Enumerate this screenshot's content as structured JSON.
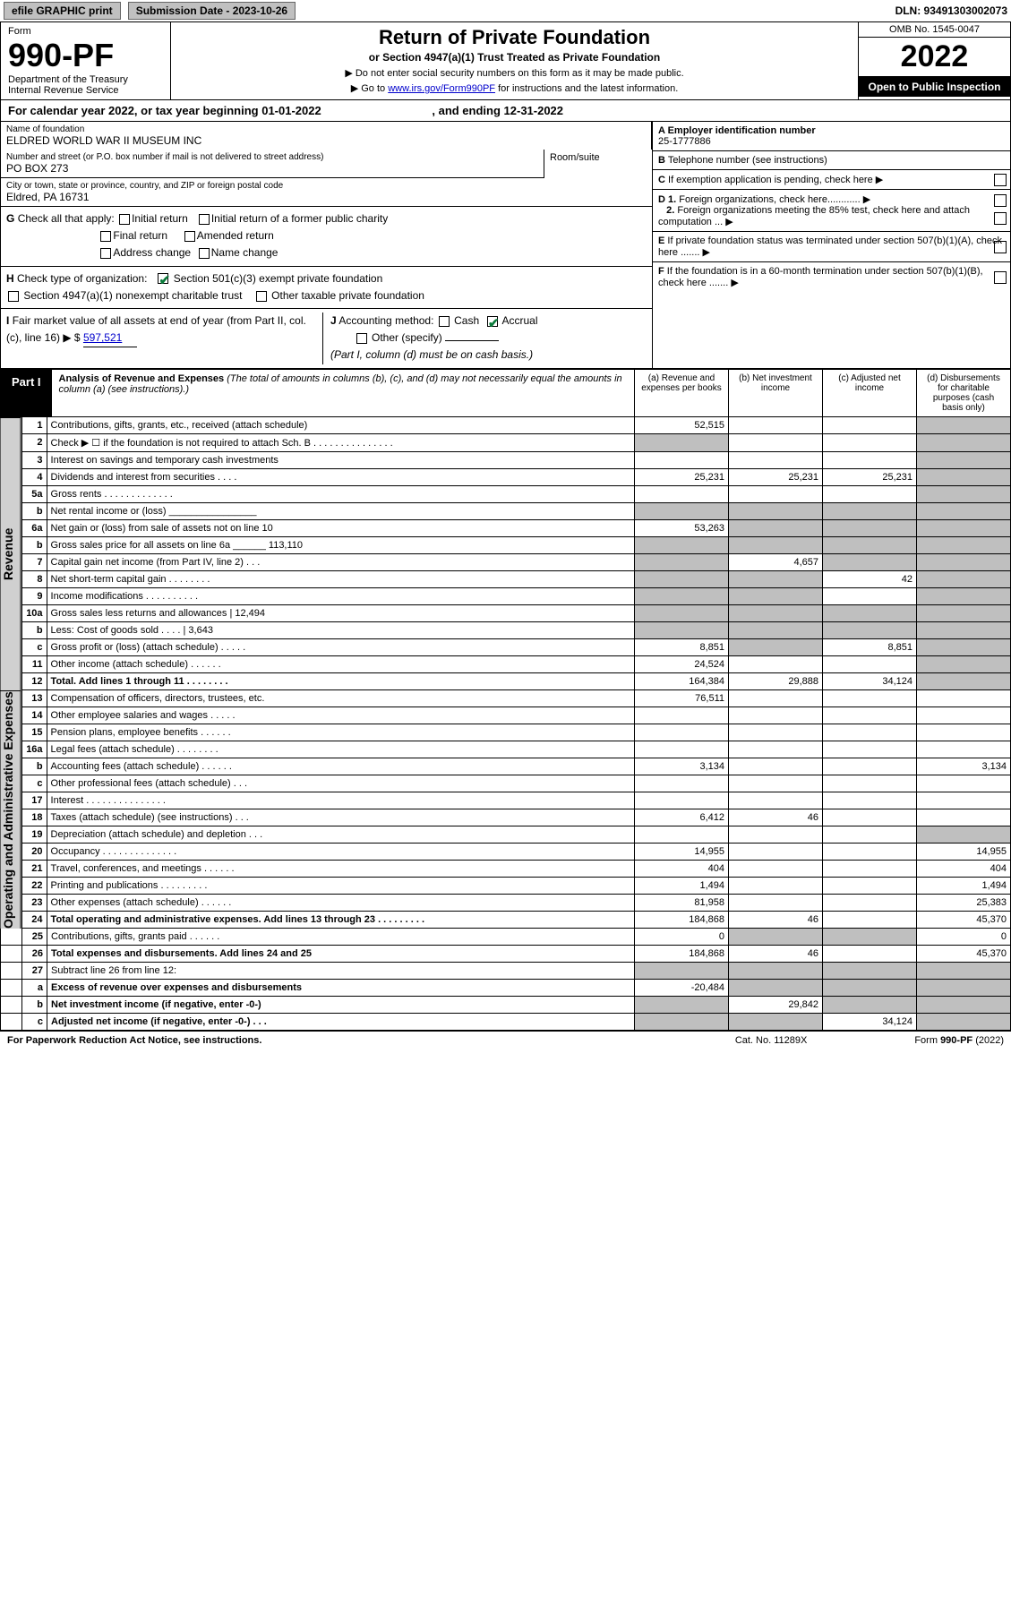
{
  "top": {
    "efile": "efile GRAPHIC print",
    "sub_lbl": "Submission Date - 2023-10-26",
    "dln": "DLN: 93491303002073"
  },
  "header": {
    "form": "Form",
    "form_no": "990-PF",
    "dept": "Department of the Treasury",
    "irs": "Internal Revenue Service",
    "title": "Return of Private Foundation",
    "subtitle": "or Section 4947(a)(1) Trust Treated as Private Foundation",
    "note1": "▶ Do not enter social security numbers on this form as it may be made public.",
    "note2": "▶ Go to",
    "link": "www.irs.gov/Form990PF",
    "note2b": "for instructions and the latest information.",
    "omb": "OMB No. 1545-0047",
    "year": "2022",
    "open": "Open to Public Inspection"
  },
  "cal": {
    "a": "For calendar year 2022, or tax year beginning 01-01-2022",
    "b": ", and ending 12-31-2022"
  },
  "info": {
    "name_lbl": "Name of foundation",
    "name": "ELDRED WORLD WAR II MUSEUM INC",
    "addr_lbl": "Number and street (or P.O. box number if mail is not delivered to street address)",
    "addr": "PO BOX 273",
    "room_lbl": "Room/suite",
    "city_lbl": "City or town, state or province, country, and ZIP or foreign postal code",
    "city": "Eldred, PA  16731",
    "a_lbl": "A Employer identification number",
    "a_val": "25-1777886",
    "b_lbl": "B",
    "b_txt": "Telephone number (see instructions)",
    "c_txt": "If exemption application is pending, check here",
    "d1": "Foreign organizations, check here............",
    "d2": "Foreign organizations meeting the 85% test, check here and attach computation ...",
    "e": "If private foundation status was terminated under section 507(b)(1)(A), check here .......",
    "f": "If the foundation is in a 60-month termination under section 507(b)(1)(B), check here .......",
    "g": "Check all that apply:",
    "g_opts": [
      "Initial return",
      "Initial return of a former public charity",
      "Final return",
      "Amended return",
      "Address change",
      "Name change"
    ],
    "h": "Check type of organization:",
    "h1": "Section 501(c)(3) exempt private foundation",
    "h2": "Section 4947(a)(1) nonexempt charitable trust",
    "h3": "Other taxable private foundation",
    "i": "Fair market value of all assets at end of year (from Part II, col. (c), line 16)",
    "i_val": "597,521",
    "j": "Accounting method:",
    "j_cash": "Cash",
    "j_acc": "Accrual",
    "j_oth": "Other (specify)",
    "j_note": "(Part I, column (d) must be on cash basis.)"
  },
  "part1": {
    "tab": "Part I",
    "title": "Analysis of Revenue and Expenses",
    "note": "(The total of amounts in columns (b), (c), and (d) may not necessarily equal the amounts in column (a) (see instructions).)",
    "col_a": "(a) Revenue and expenses per books",
    "col_b": "(b) Net investment income",
    "col_c": "(c) Adjusted net income",
    "col_d": "(d) Disbursements for charitable purposes (cash basis only)"
  },
  "side": {
    "rev": "Revenue",
    "exp": "Operating and Administrative Expenses"
  },
  "rows": [
    {
      "n": "1",
      "d": "Contributions, gifts, grants, etc., received (attach schedule)",
      "a": "52,515",
      "gb": 0,
      "gc": 0,
      "gd": 1
    },
    {
      "n": "2",
      "d": "Check ▶ ☐ if the foundation is not required to attach Sch. B  . . . . . . . . . . . . . . .",
      "ga": 1,
      "gb": 0,
      "gc": 0,
      "gd": 1
    },
    {
      "n": "3",
      "d": "Interest on savings and temporary cash investments",
      "gd": 1
    },
    {
      "n": "4",
      "d": "Dividends and interest from securities  . . . .",
      "a": "25,231",
      "b": "25,231",
      "c": "25,231",
      "gd": 1
    },
    {
      "n": "5a",
      "d": "Gross rents  . . . . . . . . . . . . .",
      "gd": 1
    },
    {
      "n": "b",
      "d": "Net rental income or (loss)  ________________",
      "ga": 1,
      "gb": 1,
      "gc": 1,
      "gd": 1
    },
    {
      "n": "6a",
      "d": "Net gain or (loss) from sale of assets not on line 10",
      "a": "53,263",
      "gb": 1,
      "gc": 1,
      "gd": 1
    },
    {
      "n": "b",
      "d": "Gross sales price for all assets on line 6a ______ 113,110",
      "ga": 1,
      "gb": 1,
      "gc": 1,
      "gd": 1
    },
    {
      "n": "7",
      "d": "Capital gain net income (from Part IV, line 2)  . . .",
      "ga": 1,
      "b": "4,657",
      "gc": 1,
      "gd": 1
    },
    {
      "n": "8",
      "d": "Net short-term capital gain  . . . . . . . .",
      "ga": 1,
      "gb": 1,
      "c": "42",
      "gd": 1
    },
    {
      "n": "9",
      "d": "Income modifications  . . . . . . . . . .",
      "ga": 1,
      "gb": 1,
      "gd": 1
    },
    {
      "n": "10a",
      "d": "Gross sales less returns and allowances | 12,494",
      "ga": 1,
      "gb": 1,
      "gc": 1,
      "gd": 1
    },
    {
      "n": "b",
      "d": "Less: Cost of goods sold  . . . . | 3,643",
      "ga": 1,
      "gb": 1,
      "gc": 1,
      "gd": 1
    },
    {
      "n": "c",
      "d": "Gross profit or (loss) (attach schedule)  . . . . .",
      "a": "8,851",
      "gb": 1,
      "c": "8,851",
      "gd": 1
    },
    {
      "n": "11",
      "d": "Other income (attach schedule)  . . . . . .",
      "a": "24,524",
      "gd": 1
    },
    {
      "n": "12",
      "d": "Total. Add lines 1 through 11  . . . . . . . .",
      "bold": 1,
      "a": "164,384",
      "b": "29,888",
      "c": "34,124",
      "gd": 1
    },
    {
      "n": "13",
      "d": "Compensation of officers, directors, trustees, etc.",
      "a": "76,511"
    },
    {
      "n": "14",
      "d": "Other employee salaries and wages  . . . . ."
    },
    {
      "n": "15",
      "d": "Pension plans, employee benefits  . . . . . ."
    },
    {
      "n": "16a",
      "d": "Legal fees (attach schedule)  . . . . . . . ."
    },
    {
      "n": "b",
      "d": "Accounting fees (attach schedule)  . . . . . .",
      "a": "3,134",
      "d4": "3,134"
    },
    {
      "n": "c",
      "d": "Other professional fees (attach schedule)  . . ."
    },
    {
      "n": "17",
      "d": "Interest  . . . . . . . . . . . . . . ."
    },
    {
      "n": "18",
      "d": "Taxes (attach schedule) (see instructions)  . . .",
      "a": "6,412",
      "b": "46"
    },
    {
      "n": "19",
      "d": "Depreciation (attach schedule) and depletion  . . .",
      "gd": 1
    },
    {
      "n": "20",
      "d": "Occupancy  . . . . . . . . . . . . . .",
      "a": "14,955",
      "d4": "14,955"
    },
    {
      "n": "21",
      "d": "Travel, conferences, and meetings  . . . . . .",
      "a": "404",
      "d4": "404"
    },
    {
      "n": "22",
      "d": "Printing and publications  . . . . . . . . .",
      "a": "1,494",
      "d4": "1,494"
    },
    {
      "n": "23",
      "d": "Other expenses (attach schedule)  . . . . . .",
      "a": "81,958",
      "d4": "25,383"
    },
    {
      "n": "24",
      "d": "Total operating and administrative expenses. Add lines 13 through 23  . . . . . . . . .",
      "bold": 1,
      "a": "184,868",
      "b": "46",
      "d4": "45,370"
    },
    {
      "n": "25",
      "d": "Contributions, gifts, grants paid  . . . . . .",
      "a": "0",
      "gb": 1,
      "gc": 1,
      "d4": "0"
    },
    {
      "n": "26",
      "d": "Total expenses and disbursements. Add lines 24 and 25",
      "bold": 1,
      "a": "184,868",
      "b": "46",
      "d4": "45,370"
    },
    {
      "n": "27",
      "d": "Subtract line 26 from line 12:",
      "ga": 1,
      "gb": 1,
      "gc": 1,
      "gd": 1
    },
    {
      "n": "a",
      "d": "Excess of revenue over expenses and disbursements",
      "bold": 1,
      "a": "-20,484",
      "gb": 1,
      "gc": 1,
      "gd": 1
    },
    {
      "n": "b",
      "d": "Net investment income (if negative, enter -0-)",
      "bold": 1,
      "ga": 1,
      "b": "29,842",
      "gc": 1,
      "gd": 1
    },
    {
      "n": "c",
      "d": "Adjusted net income (if negative, enter -0-)  . . .",
      "bold": 1,
      "ga": 1,
      "gb": 1,
      "c": "34,124",
      "gd": 1
    }
  ],
  "footer": {
    "l": "For Paperwork Reduction Act Notice, see instructions.",
    "m": "Cat. No. 11289X",
    "r": "Form 990-PF (2022)"
  }
}
